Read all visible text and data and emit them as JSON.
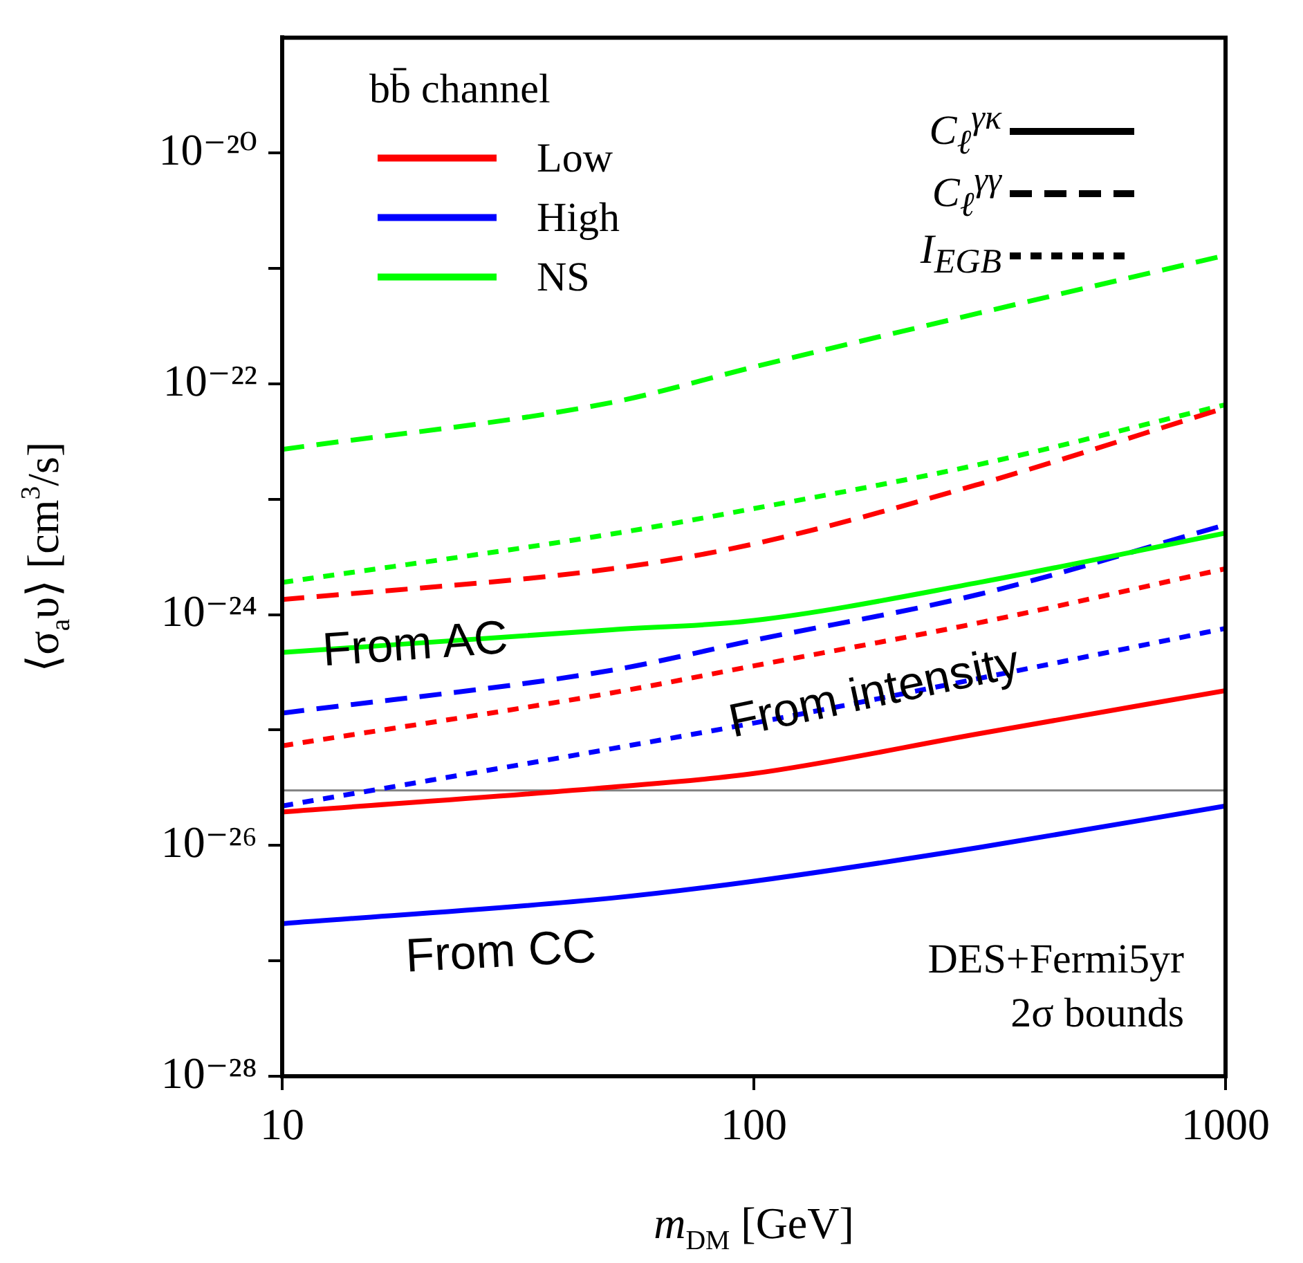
{
  "chart_data": {
    "type": "line",
    "xlabel": "m$_{DM}$ [GeV]",
    "ylabel": "⟨σ$_{a}$υ⟩ [cm$^{3}$/s]",
    "legend_title": "bb̄ channel",
    "legend": "top left",
    "log": "xy",
    "x": [
      10,
      50,
      100,
      300,
      1000
    ],
    "xlim": [
      10,
      1000
    ],
    "xticks": [
      10,
      100,
      1000
    ],
    "ylim": [
      1e-28,
      1e-19
    ],
    "yticks": [
      {
        "value": 1e-28,
        "label": "10⁻²⁸"
      },
      {
        "value": 1e-27,
        "label": null
      },
      {
        "value": 1e-26,
        "label": "10⁻²⁶"
      },
      {
        "value": 1e-25,
        "label": null
      },
      {
        "value": 1e-24,
        "label": "10⁻²⁴"
      },
      {
        "value": 1e-23,
        "label": null
      },
      {
        "value": 1e-22,
        "label": "10⁻²²"
      },
      {
        "value": 1e-21,
        "label": null
      },
      {
        "value": 1e-20,
        "label": "10⁻²⁰"
      }
    ],
    "series": [
      {
        "name": "Low",
        "color": "#ff0000",
        "line_style": "solid",
        "values": [
          1.95e-26,
          3.2e-26,
          4.2e-26,
          9.3e-26,
          2.2e-25
        ]
      },
      {
        "name": "High",
        "color": "#0000ff",
        "line_style": "solid",
        "values": [
          2.1e-27,
          3.5e-27,
          4.9e-27,
          9.6e-27,
          2.2e-26
        ]
      },
      {
        "name": "NS",
        "color": "#00ff00",
        "line_style": "solid",
        "values": [
          4.7e-25,
          7.4e-25,
          8.9e-25,
          1.9e-24,
          5.1e-24
        ]
      },
      {
        "color": "#ff0000",
        "line_style": "dashed",
        "values": [
          1.35e-24,
          2.5e-24,
          4.1e-24,
          1.35e-23,
          6.2e-23
        ]
      },
      {
        "color": "#0000ff",
        "line_style": "dashed",
        "values": [
          1.4e-25,
          3.3e-25,
          6e-25,
          1.5e-24,
          6e-24
        ]
      },
      {
        "color": "#00ff00",
        "line_style": "dashed",
        "values": [
          2.7e-23,
          6.9e-23,
          1.4e-22,
          4.1e-22,
          1.3e-21
        ]
      },
      {
        "color": "#ff0000",
        "line_style": "dotted",
        "values": [
          7.3e-26,
          2.1e-25,
          3.6e-25,
          8.5e-25,
          2.5e-24
        ]
      },
      {
        "color": "#0000ff",
        "line_style": "dotted",
        "values": [
          2.2e-26,
          6.9e-26,
          1.15e-25,
          2.8e-25,
          7.6e-25
        ]
      },
      {
        "color": "#00ff00",
        "line_style": "dotted",
        "values": [
          1.9e-24,
          5e-24,
          8.3e-24,
          2e-23,
          6.6e-23
        ]
      }
    ],
    "ref_lines": [
      {
        "axis": "y",
        "value": 3e-26,
        "color": "#808080"
      }
    ],
    "annotations": [
      "C$_{ℓ}$$^{γκ}$",
      "C$_{ℓ}$$^{γγ}$",
      "I$_{EGB}$",
      "From AC",
      "From intensity",
      "From CC",
      "DES+Fermi5yr",
      "2σ bounds"
    ]
  }
}
